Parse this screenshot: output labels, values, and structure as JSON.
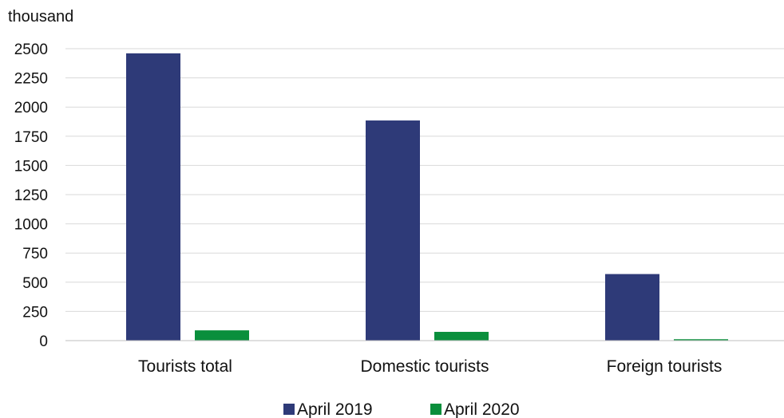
{
  "chart_data": {
    "type": "bar",
    "unit_label": "thousand",
    "categories": [
      "Tourists total",
      "Domestic tourists",
      "Foreign tourists"
    ],
    "series": [
      {
        "name": "April 2019",
        "color": "#2e3a78",
        "values": [
          2460,
          1885,
          570
        ]
      },
      {
        "name": "April 2020",
        "color": "#0a8f3c",
        "values": [
          88,
          75,
          12
        ]
      }
    ],
    "ylim": [
      0,
      2500
    ],
    "y_ticks": [
      "0",
      "250",
      "500",
      "750",
      "1000",
      "1250",
      "1500",
      "1750",
      "2000",
      "2250",
      "2500"
    ],
    "grid": true,
    "legend_position": "bottom"
  }
}
